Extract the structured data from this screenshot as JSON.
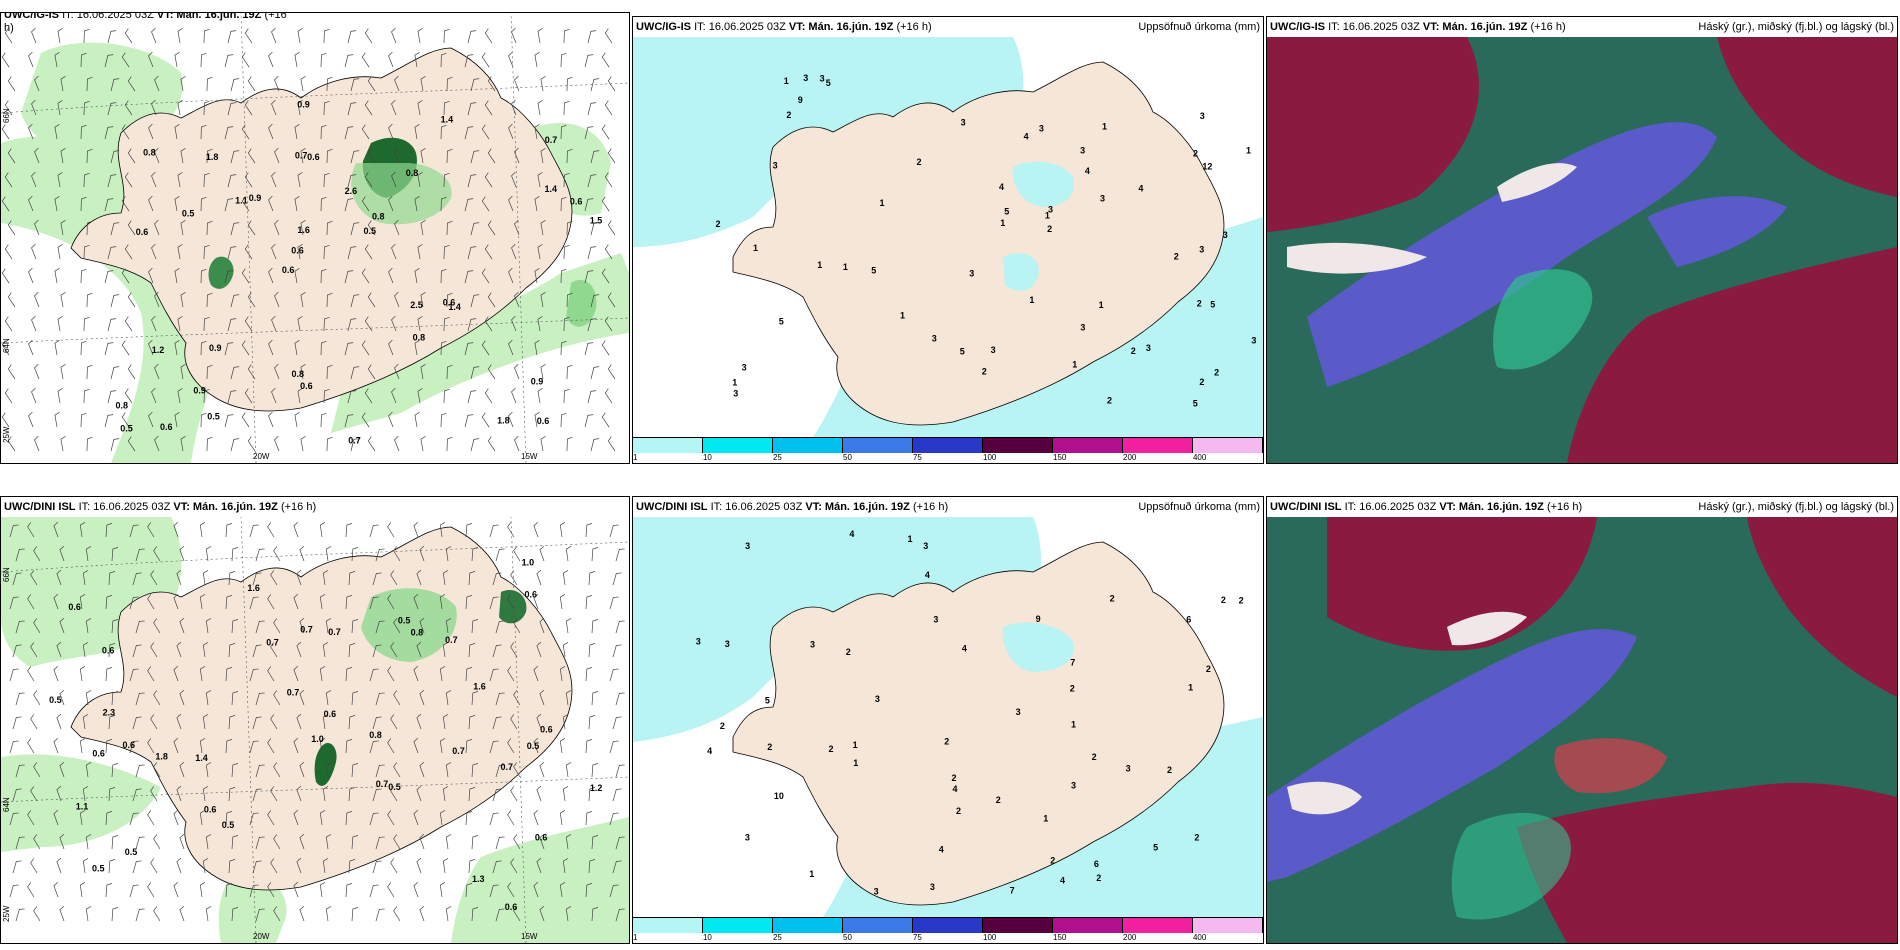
{
  "panels": {
    "top_wind": {
      "title_model": "UWC/IG-IS",
      "title_it": "IT: 16.06.2025 03Z",
      "title_vt": "VT: Mán. 16.jún. 19Z",
      "title_lead": "(+16",
      "title_cont": "h)"
    },
    "top_precip": {
      "title_model": "UWC/IG-IS",
      "title_it": "IT: 16.06.2025 03Z",
      "title_vt": "VT: Mán. 16.jún. 19Z",
      "title_lead": "(+16 h)",
      "right_title": "Uppsöfnuð úrkoma (mm)"
    },
    "top_cloud": {
      "title_model": "UWC/IG-IS",
      "title_it": "IT: 16.06.2025 03Z",
      "title_vt": "VT: Mán. 16.jún. 19Z",
      "title_lead": "(+16 h)",
      "right_title": "Háský (gr.), miðský (fj.bl.) og lágský (bl.)"
    },
    "bottom_wind": {
      "title_model": "UWC/DINI ISL",
      "title_it": "IT: 16.06.2025 03Z",
      "title_vt": "VT: Mán. 16.jún. 19Z",
      "title_lead": "(+16 h)"
    },
    "bottom_precip": {
      "title_model": "UWC/DINI ISL",
      "title_it": "IT: 16.06.2025 03Z",
      "title_vt": "VT: Mán. 16.jún. 19Z",
      "title_lead": "(+16 h)",
      "right_title": "Uppsöfnuð úrkoma (mm)"
    },
    "bottom_cloud": {
      "title_model": "UWC/DINI ISL",
      "title_it": "IT: 16.06.2025 03Z",
      "title_vt": "VT: Mán. 16.jún. 19Z",
      "title_lead": "(+16 h)",
      "right_title": "Háský (gr.), miðský (fj.bl.) og lágský (bl.)"
    }
  },
  "axes": {
    "lat_66": "66N",
    "lat_64": "64N",
    "lon_25": "25W",
    "lon_20": "20W",
    "lon_15": "15W"
  },
  "colorbar": {
    "ticks": [
      "1",
      "10",
      "25",
      "50",
      "75",
      "100",
      "150",
      "200",
      "400"
    ],
    "colors": [
      "#b4f5f5",
      "#00e8f0",
      "#00c0ee",
      "#3a7ae8",
      "#2838c8",
      "#560040",
      "#b0108c",
      "#f020a0",
      "#f5b8f0"
    ]
  },
  "colors": {
    "land": "#f5e6d8",
    "sea_precip": "#b8f4f4",
    "green_light": "#c8f0c0",
    "green_mid": "#90d890",
    "green_dark": "#1e6a2e",
    "cloud_maroon": "#8a1a40",
    "cloud_blue": "#5a5ac8",
    "cloud_teal": "#2a6a5a"
  },
  "top_wind_labels": [
    "0.6",
    "0.6",
    "0.7",
    "0.6",
    "0.8",
    "0.6",
    "0.7",
    "2.6",
    "1.2",
    "0.9",
    "0.8",
    "0.9",
    "0.6",
    "0.8",
    "1.4",
    "0.8",
    "0.9",
    "1.5",
    "2.5",
    "1.4",
    "0.6",
    "0.8",
    "1.6",
    "1.8",
    "1.4",
    "0.9",
    "1.8",
    "0.9",
    "0.6",
    "0.7",
    "1.1",
    "0.5",
    "0.8",
    "0.5",
    "0.6",
    "0.5",
    "0.5",
    "0.6"
  ],
  "bottom_wind_labels": [
    "0.6",
    "0.6",
    "0.7",
    "0.6",
    "0.6",
    "0.6",
    "0.5",
    "1.4",
    "0.7",
    "0.7",
    "0.8",
    "1.3",
    "0.5",
    "1.6",
    "0.8",
    "1.1",
    "0.7",
    "0.6",
    "0.5",
    "0.5",
    "1.0",
    "0.7",
    "1.6",
    "1.2",
    "0.6",
    "2.3",
    "1.8",
    "1.0",
    "0.7",
    "0.6",
    "0.5",
    "0.6",
    "0.6",
    "0.5",
    "0.7",
    "0.7",
    "0.5"
  ],
  "top_precip_labels": [
    "5",
    "3",
    "2",
    "3",
    "3",
    "3",
    "4",
    "4",
    "5",
    "3",
    "5",
    "1",
    "3",
    "2",
    "1",
    "3",
    "5",
    "2",
    "2",
    "1",
    "1",
    "1",
    "1",
    "2",
    "3",
    "2",
    "2",
    "1",
    "2",
    "3",
    "5",
    "1",
    "5",
    "12",
    "3",
    "4",
    "1",
    "3",
    "9",
    "3",
    "3",
    "2",
    "1",
    "1",
    "5",
    "3",
    "2",
    "3",
    "3",
    "1",
    "1",
    "1",
    "2",
    "2",
    "3",
    "3",
    "4",
    "3"
  ],
  "bottom_precip_labels": [
    "5",
    "4",
    "4",
    "2",
    "2",
    "2",
    "3",
    "6",
    "3",
    "7",
    "5",
    "1",
    "2",
    "2",
    "2",
    "4",
    "3",
    "3",
    "2",
    "2",
    "1",
    "3",
    "2",
    "1",
    "3",
    "1",
    "2",
    "10",
    "9",
    "4",
    "7",
    "6",
    "2",
    "2",
    "3",
    "3",
    "3",
    "2",
    "2",
    "2",
    "1",
    "1",
    "2",
    "3",
    "4",
    "4",
    "3",
    "3",
    "2",
    "2",
    "1",
    "3",
    "4"
  ]
}
